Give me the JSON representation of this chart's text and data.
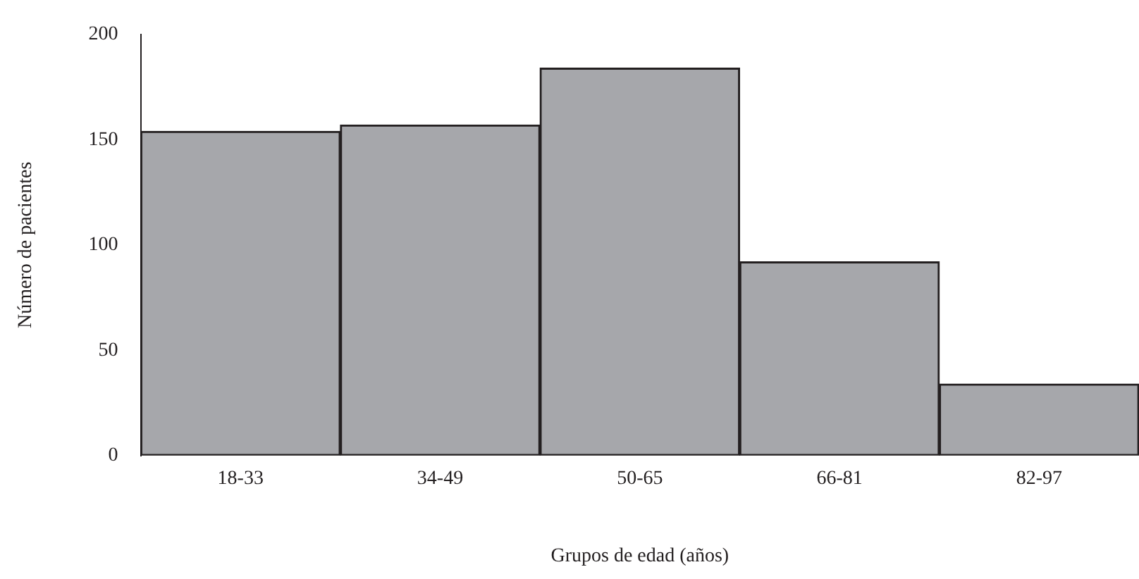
{
  "chart_data": {
    "type": "bar",
    "xlabel": "Grupos de edad (años)",
    "ylabel": "Número de pacientes",
    "categories": [
      "18-33",
      "34-49",
      "50-65",
      "66-81",
      "82-97"
    ],
    "values": [
      154,
      157,
      184,
      92,
      34
    ],
    "color": "#a6a7ab",
    "ylim": [
      0,
      200
    ],
    "yticks": [
      0,
      50,
      100,
      150,
      200
    ],
    "grid": false,
    "legend": false
  }
}
